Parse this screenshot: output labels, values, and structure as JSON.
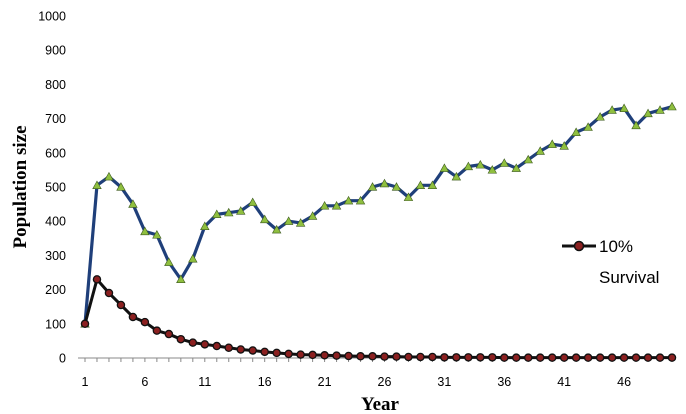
{
  "chart_data": {
    "type": "line",
    "xlabel": "Year",
    "ylabel": "Population size",
    "ylim": [
      0,
      1000
    ],
    "xlim": [
      1,
      50
    ],
    "y_ticks": [
      "0",
      "100",
      "200",
      "300",
      "400",
      "500",
      "600",
      "700",
      "800",
      "900",
      "1000"
    ],
    "x_ticks": [
      "1",
      "6",
      "11",
      "16",
      "21",
      "26",
      "31",
      "36",
      "41",
      "46"
    ],
    "x": [
      1,
      2,
      3,
      4,
      5,
      6,
      7,
      8,
      9,
      10,
      11,
      12,
      13,
      14,
      15,
      16,
      17,
      18,
      19,
      20,
      21,
      22,
      23,
      24,
      25,
      26,
      27,
      28,
      29,
      30,
      31,
      32,
      33,
      34,
      35,
      36,
      37,
      38,
      39,
      40,
      41,
      42,
      43,
      44,
      45,
      46,
      47,
      48,
      49,
      50
    ],
    "grid": false,
    "legend_position": "right",
    "series": [
      {
        "name": "",
        "color": "#1f3f7a",
        "marker": "triangle",
        "marker_color": "#8fbf3f",
        "values": [
          100,
          505,
          530,
          500,
          450,
          370,
          360,
          280,
          230,
          290,
          385,
          420,
          425,
          430,
          455,
          405,
          375,
          400,
          395,
          415,
          445,
          445,
          460,
          460,
          500,
          510,
          500,
          470,
          505,
          505,
          555,
          530,
          560,
          565,
          550,
          570,
          555,
          580,
          605,
          625,
          620,
          660,
          675,
          705,
          725,
          730,
          680,
          715,
          725,
          735
        ]
      },
      {
        "name": "10% Survival",
        "legend_lines": [
          "10%",
          "Survival"
        ],
        "color": "#111111",
        "marker": "circle",
        "marker_color": "#8b2020",
        "values": [
          100,
          230,
          190,
          155,
          120,
          105,
          80,
          70,
          55,
          45,
          40,
          35,
          30,
          25,
          22,
          18,
          15,
          12,
          10,
          9,
          8,
          7,
          6,
          5,
          5,
          4,
          4,
          3,
          3,
          3,
          2,
          2,
          2,
          2,
          2,
          1,
          1,
          1,
          1,
          1,
          1,
          1,
          1,
          1,
          1,
          1,
          1,
          1,
          1,
          1
        ]
      }
    ]
  }
}
